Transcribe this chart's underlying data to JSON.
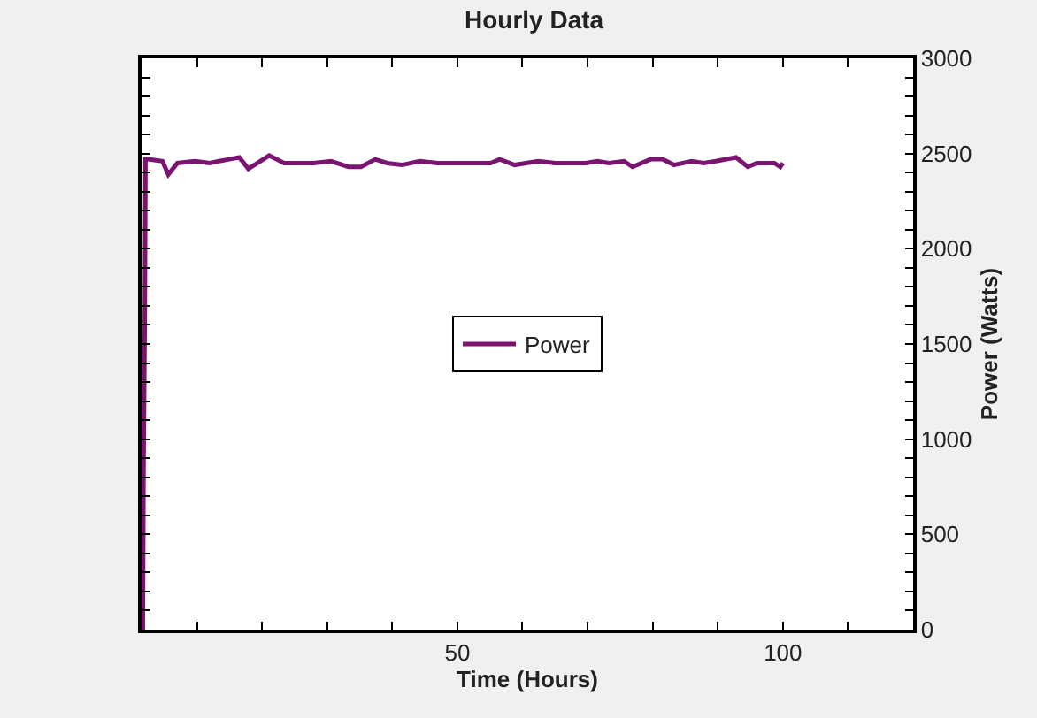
{
  "chart_data": {
    "type": "line",
    "title": "Hourly Data",
    "xlabel": "Time (Hours)",
    "ylabel": "Power (Watts)",
    "x": [
      1.7,
      1.8,
      2.0,
      2.1,
      2.5,
      4.7,
      5.6,
      7.0,
      9.7,
      12.0,
      13.4,
      16.5,
      17.9,
      19.3,
      21.1,
      23.4,
      27.9,
      30.6,
      33.3,
      35.2,
      37.4,
      39.2,
      41.5,
      44.2,
      47.0,
      50.6,
      55.1,
      56.5,
      58.8,
      62.4,
      65.1,
      67.8,
      69.7,
      71.5,
      73.3,
      75.6,
      76.9,
      79.7,
      81.5,
      83.3,
      86.0,
      87.8,
      89.7,
      92.8,
      94.6,
      96.0,
      98.7,
      99.6,
      100
    ],
    "series": [
      {
        "name": "Power",
        "color": "#7a1470",
        "values": [
          0,
          830,
          1670,
          2470,
          2470,
          2460,
          2390,
          2450,
          2460,
          2450,
          2460,
          2480,
          2420,
          2450,
          2490,
          2450,
          2450,
          2460,
          2430,
          2430,
          2470,
          2450,
          2440,
          2460,
          2450,
          2450,
          2450,
          2470,
          2440,
          2460,
          2450,
          2450,
          2450,
          2460,
          2450,
          2460,
          2430,
          2470,
          2470,
          2440,
          2460,
          2450,
          2460,
          2480,
          2430,
          2450,
          2450,
          2430,
          2450
        ]
      }
    ],
    "xlim": [
      1.5,
      120
    ],
    "xticks": [
      {
        "value": 10,
        "label": null
      },
      {
        "value": 20,
        "label": null
      },
      {
        "value": 30,
        "label": null
      },
      {
        "value": 40,
        "label": null
      },
      50,
      {
        "value": 60,
        "label": null
      },
      {
        "value": 70,
        "label": null
      },
      {
        "value": 80,
        "label": null
      },
      {
        "value": 90,
        "label": null
      },
      100,
      {
        "value": 110,
        "label": null
      },
      {
        "value": 120,
        "label": null
      }
    ],
    "ylim": [
      0,
      3000
    ],
    "yticks": [
      0,
      {
        "value": 100,
        "label": null
      },
      {
        "value": 200,
        "label": null
      },
      {
        "value": 300,
        "label": null
      },
      {
        "value": 400,
        "label": null
      },
      500,
      {
        "value": 600,
        "label": null
      },
      {
        "value": 700,
        "label": null
      },
      {
        "value": 800,
        "label": null
      },
      {
        "value": 900,
        "label": null
      },
      1000,
      {
        "value": 1100,
        "label": null
      },
      {
        "value": 1200,
        "label": null
      },
      {
        "value": 1300,
        "label": null
      },
      {
        "value": 1400,
        "label": null
      },
      1500,
      {
        "value": 1600,
        "label": null
      },
      {
        "value": 1700,
        "label": null
      },
      {
        "value": 1800,
        "label": null
      },
      {
        "value": 1900,
        "label": null
      },
      2000,
      {
        "value": 2100,
        "label": null
      },
      {
        "value": 2200,
        "label": null
      },
      {
        "value": 2300,
        "label": null
      },
      {
        "value": 2400,
        "label": null
      },
      2500,
      {
        "value": 2600,
        "label": null
      },
      {
        "value": 2700,
        "label": null
      },
      {
        "value": 2800,
        "label": null
      },
      {
        "value": 2900,
        "label": null
      },
      3000
    ],
    "legend": "center",
    "marker": "none",
    "line_style": "solid"
  }
}
